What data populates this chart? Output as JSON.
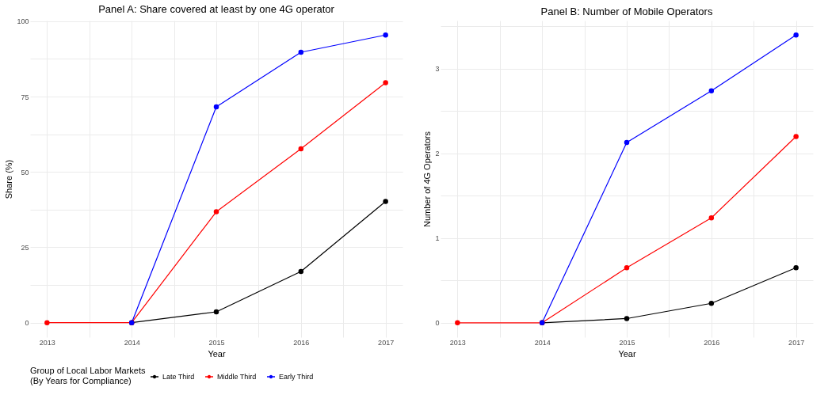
{
  "chart_data": [
    {
      "type": "line",
      "title": "Panel A: Share covered at least by one 4G operator",
      "xlabel": "Year",
      "ylabel": "Share (%)",
      "legend_title": "Group of Local Labor Markets (By Years for Compliance)",
      "legend": "bottom",
      "grid": true,
      "marker": "circle",
      "line_style": "solid",
      "x": [
        2013,
        2014,
        2015,
        2016,
        2017
      ],
      "xlim": [
        2012.8,
        2017.2
      ],
      "xticks": [
        2013,
        {
          "value": 2013.5,
          "label": null
        },
        2014,
        {
          "value": 2014.5,
          "label": null
        },
        2015,
        {
          "value": 2015.5,
          "label": null
        },
        2016,
        {
          "value": 2016.5,
          "label": null
        },
        2017
      ],
      "ylim": [
        -4.8,
        100.2
      ],
      "yticks": [
        0,
        {
          "value": 12.5,
          "label": null
        },
        25,
        {
          "value": 37.5,
          "label": null
        },
        50,
        {
          "value": 62.5,
          "label": null
        },
        75,
        {
          "value": 87.5,
          "label": null
        },
        100
      ],
      "series": [
        {
          "name": "Late Third",
          "color": "#000000",
          "values": [
            null,
            0,
            3.6,
            17.0,
            40.2
          ]
        },
        {
          "name": "Middle Third",
          "color": "#ff0000",
          "values": [
            0,
            0,
            36.8,
            57.7,
            79.6
          ]
        },
        {
          "name": "Early Third",
          "color": "#0000ff",
          "values": [
            null,
            0,
            71.6,
            89.7,
            95.4
          ]
        }
      ]
    },
    {
      "type": "line",
      "title": "Panel B: Number of Mobile Operators",
      "xlabel": "Year",
      "ylabel": "Number of 4G Operators",
      "grid": true,
      "marker": "circle",
      "line_style": "solid",
      "x": [
        2013,
        2014,
        2015,
        2016,
        2017
      ],
      "xlim": [
        2012.8,
        2017.2
      ],
      "xticks": [
        2013,
        {
          "value": 2013.5,
          "label": null
        },
        2014,
        {
          "value": 2014.5,
          "label": null
        },
        2015,
        {
          "value": 2015.5,
          "label": null
        },
        2016,
        {
          "value": 2016.5,
          "label": null
        },
        2017
      ],
      "ylim": [
        -0.17,
        3.57
      ],
      "yticks": [
        0,
        {
          "value": 0.5,
          "label": null
        },
        1,
        {
          "value": 1.5,
          "label": null
        },
        2,
        {
          "value": 2.5,
          "label": null
        },
        3,
        {
          "value": 3.5,
          "label": null
        }
      ],
      "series": [
        {
          "name": "Late Third",
          "color": "#000000",
          "values": [
            null,
            0,
            0.05,
            0.23,
            0.65
          ]
        },
        {
          "name": "Middle Third",
          "color": "#ff0000",
          "values": [
            0,
            0,
            0.65,
            1.24,
            2.2
          ]
        },
        {
          "name": "Early Third",
          "color": "#0000ff",
          "values": [
            null,
            0,
            2.13,
            2.74,
            3.4
          ]
        }
      ]
    }
  ]
}
